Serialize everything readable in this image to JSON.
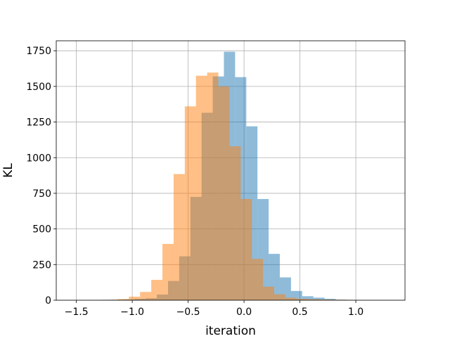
{
  "chart_data": {
    "type": "bar",
    "histogram": true,
    "title": "",
    "xlabel": "iteration",
    "ylabel": "KL",
    "xlim": [
      -1.68,
      1.44
    ],
    "ylim": [
      0,
      1820
    ],
    "xticks": [
      -1.5,
      -1.0,
      -0.5,
      0.0,
      0.5,
      1.0
    ],
    "xtick_labels": [
      "−1.5",
      "−1.0",
      "−0.5",
      "0.0",
      "0.5",
      "1.0"
    ],
    "yticks": [
      0,
      250,
      500,
      750,
      1000,
      1250,
      1500,
      1750
    ],
    "ytick_labels": [
      "0",
      "250",
      "500",
      "750",
      "1000",
      "1250",
      "1500",
      "1750"
    ],
    "grid": true,
    "legend": "none",
    "series": [
      {
        "color": "#1f77b4",
        "alpha": 0.5,
        "bins": [
          {
            "x0": -1.38,
            "x1": -1.28,
            "count": 2
          },
          {
            "x0": -1.28,
            "x1": -1.18,
            "count": 3
          },
          {
            "x0": -1.18,
            "x1": -1.08,
            "count": 4
          },
          {
            "x0": -1.08,
            "x1": -0.98,
            "count": 6
          },
          {
            "x0": -0.98,
            "x1": -0.88,
            "count": 10
          },
          {
            "x0": -0.88,
            "x1": -0.78,
            "count": 14
          },
          {
            "x0": -0.78,
            "x1": -0.68,
            "count": 40
          },
          {
            "x0": -0.68,
            "x1": -0.58,
            "count": 135
          },
          {
            "x0": -0.58,
            "x1": -0.48,
            "count": 308
          },
          {
            "x0": -0.48,
            "x1": -0.38,
            "count": 725
          },
          {
            "x0": -0.38,
            "x1": -0.28,
            "count": 1315
          },
          {
            "x0": -0.28,
            "x1": -0.18,
            "count": 1570
          },
          {
            "x0": -0.18,
            "x1": -0.08,
            "count": 1743
          },
          {
            "x0": -0.08,
            "x1": 0.02,
            "count": 1565
          },
          {
            "x0": 0.02,
            "x1": 0.12,
            "count": 1220
          },
          {
            "x0": 0.12,
            "x1": 0.22,
            "count": 710
          },
          {
            "x0": 0.22,
            "x1": 0.32,
            "count": 325
          },
          {
            "x0": 0.32,
            "x1": 0.42,
            "count": 160
          },
          {
            "x0": 0.42,
            "x1": 0.52,
            "count": 65
          },
          {
            "x0": 0.52,
            "x1": 0.62,
            "count": 28
          },
          {
            "x0": 0.62,
            "x1": 0.72,
            "count": 18
          },
          {
            "x0": 0.72,
            "x1": 0.82,
            "count": 10
          },
          {
            "x0": 0.82,
            "x1": 0.92,
            "count": 4
          },
          {
            "x0": 0.92,
            "x1": 1.02,
            "count": 2
          }
        ]
      },
      {
        "color": "#ff7f0e",
        "alpha": 0.5,
        "bins": [
          {
            "x0": -1.23,
            "x1": -1.13,
            "count": 3
          },
          {
            "x0": -1.13,
            "x1": -1.03,
            "count": 8
          },
          {
            "x0": -1.03,
            "x1": -0.93,
            "count": 25
          },
          {
            "x0": -0.93,
            "x1": -0.83,
            "count": 58
          },
          {
            "x0": -0.83,
            "x1": -0.73,
            "count": 143
          },
          {
            "x0": -0.73,
            "x1": -0.63,
            "count": 395
          },
          {
            "x0": -0.63,
            "x1": -0.53,
            "count": 885
          },
          {
            "x0": -0.53,
            "x1": -0.43,
            "count": 1360
          },
          {
            "x0": -0.43,
            "x1": -0.33,
            "count": 1575
          },
          {
            "x0": -0.33,
            "x1": -0.23,
            "count": 1597
          },
          {
            "x0": -0.23,
            "x1": -0.13,
            "count": 1500
          },
          {
            "x0": -0.13,
            "x1": -0.03,
            "count": 1080
          },
          {
            "x0": -0.03,
            "x1": 0.07,
            "count": 710
          },
          {
            "x0": 0.07,
            "x1": 0.17,
            "count": 290
          },
          {
            "x0": 0.17,
            "x1": 0.27,
            "count": 95
          },
          {
            "x0": 0.27,
            "x1": 0.37,
            "count": 42
          },
          {
            "x0": 0.37,
            "x1": 0.47,
            "count": 18
          },
          {
            "x0": 0.47,
            "x1": 0.57,
            "count": 10
          },
          {
            "x0": 0.57,
            "x1": 0.67,
            "count": 7
          },
          {
            "x0": 0.67,
            "x1": 0.77,
            "count": 5
          },
          {
            "x0": 0.77,
            "x1": 0.87,
            "count": 4
          },
          {
            "x0": 0.87,
            "x1": 0.97,
            "count": 3
          },
          {
            "x0": 0.97,
            "x1": 1.07,
            "count": 2
          }
        ]
      }
    ]
  }
}
